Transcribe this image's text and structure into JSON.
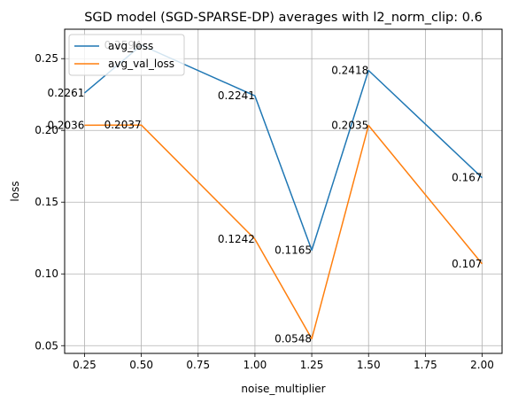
{
  "chart_data": {
    "type": "line",
    "title": "SGD model (SGD-SPARSE-DP) averages with l2_norm_clip: 0.6",
    "xlabel": "noise_multiplier",
    "ylabel": "loss",
    "x": [
      0.25,
      0.5,
      1.0,
      1.25,
      1.5,
      2.0
    ],
    "xlim": [
      0.1625,
      2.0875
    ],
    "ylim": [
      0.0446,
      0.2705
    ],
    "xticks": [
      0.25,
      0.5,
      0.75,
      1.0,
      1.25,
      1.5,
      1.75,
      2.0
    ],
    "xtick_labels": [
      "0.25",
      "0.50",
      "0.75",
      "1.00",
      "1.25",
      "1.50",
      "1.75",
      "2.00"
    ],
    "yticks": [
      0.05,
      0.1,
      0.15,
      0.2,
      0.25
    ],
    "ytick_labels": [
      "0.05",
      "0.10",
      "0.15",
      "0.20",
      "0.25"
    ],
    "grid": true,
    "legend_position": "top-left",
    "series": [
      {
        "name": "avg_loss",
        "color": "#1f77b4",
        "values": [
          0.2261,
          0.2594,
          0.2241,
          0.1165,
          0.2418,
          0.167
        ],
        "labels": [
          "0.2261",
          "0.2594",
          "0.2241",
          "0.1165",
          "0.2418",
          "0.167"
        ]
      },
      {
        "name": "avg_val_loss",
        "color": "#ff7f0e",
        "values": [
          0.2036,
          0.2037,
          0.1242,
          0.0548,
          0.2035,
          0.107
        ],
        "labels": [
          "0.2036",
          "0.2037",
          "0.1242",
          "0.0548",
          "0.2035",
          "0.107"
        ]
      }
    ]
  }
}
